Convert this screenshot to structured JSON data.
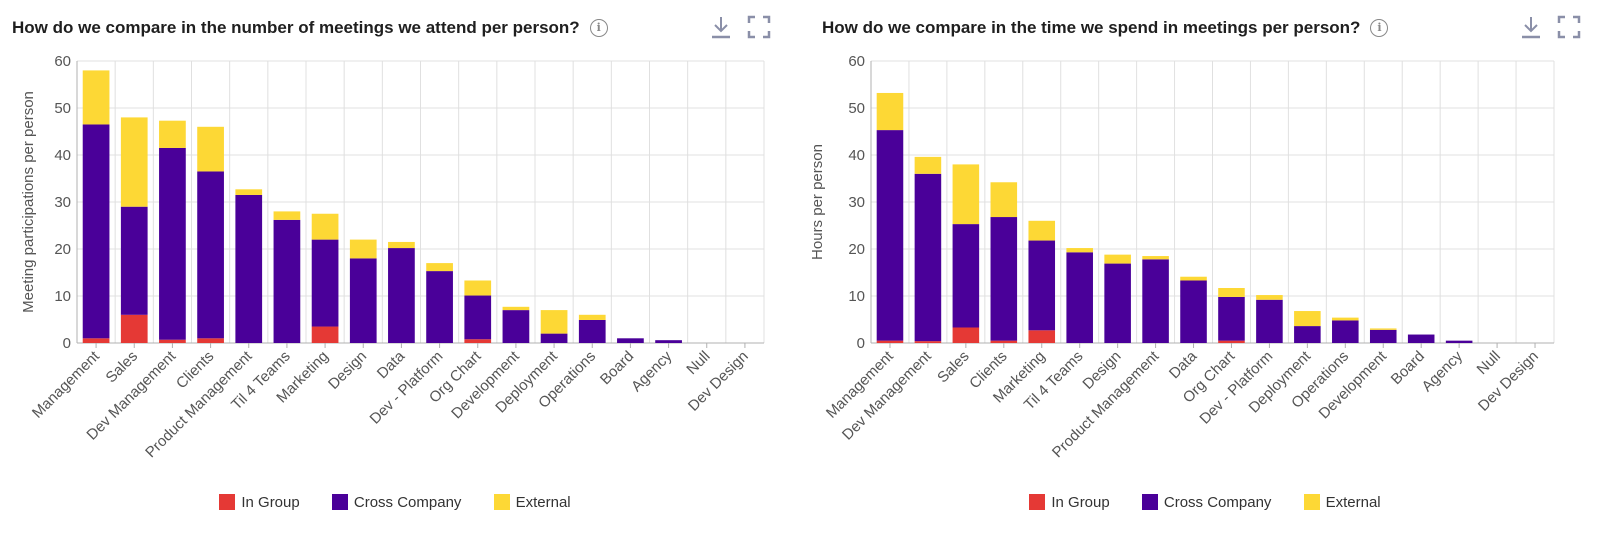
{
  "colors": {
    "in_group": "#e53935",
    "cross_company": "#4a0099",
    "external": "#fdd835",
    "grid": "#e0e0e0",
    "axis": "#b0b0b0"
  },
  "icons": {
    "info": "info-icon",
    "download": "download-icon",
    "expand": "expand-icon"
  },
  "legend": [
    "In Group",
    "Cross Company",
    "External"
  ],
  "chart_data": [
    {
      "type": "bar",
      "stacked": true,
      "title": "How do we compare in the number of meetings we attend per person?",
      "ylabel": "Meeting participations per person",
      "ylim": [
        0,
        60
      ],
      "yticks": [
        "0",
        "10",
        "20",
        "30",
        "40",
        "50",
        "60"
      ],
      "categories": [
        "Management",
        "Sales",
        "Dev Management",
        "Clients",
        "Product Management",
        "Til 4 Teams",
        "Marketing",
        "Design",
        "Data",
        "Dev - Platform",
        "Org Chart",
        "Development",
        "Deployment",
        "Operations",
        "Board",
        "Agency",
        "Null",
        "Dev Design"
      ],
      "series": [
        {
          "name": "In Group",
          "values": [
            1,
            6,
            0.7,
            1,
            0,
            0,
            3.5,
            0,
            0,
            0,
            0.8,
            0,
            0,
            0,
            0,
            0,
            0,
            0
          ]
        },
        {
          "name": "Cross Company",
          "values": [
            45.5,
            23,
            40.8,
            35.5,
            31.5,
            26.2,
            18.5,
            18,
            20.2,
            15.3,
            9.3,
            7,
            2,
            4.9,
            1,
            0.6,
            0,
            0
          ]
        },
        {
          "name": "External",
          "values": [
            11.5,
            19,
            5.8,
            9.5,
            1.2,
            1.8,
            5.5,
            4,
            1.3,
            1.7,
            3.2,
            0.7,
            5,
            1.1,
            0,
            0,
            0,
            0
          ]
        }
      ],
      "grid": true,
      "legend_position": "bottom"
    },
    {
      "type": "bar",
      "stacked": true,
      "title": "How do we compare in the time we spend in meetings per person?",
      "ylabel": "Hours per person",
      "ylim": [
        0,
        60
      ],
      "yticks": [
        "0",
        "10",
        "20",
        "30",
        "40",
        "50",
        "60"
      ],
      "categories": [
        "Management",
        "Dev Management",
        "Sales",
        "Clients",
        "Marketing",
        "Til 4 Teams",
        "Design",
        "Product Management",
        "Data",
        "Org Chart",
        "Dev - Platform",
        "Deployment",
        "Operations",
        "Development",
        "Board",
        "Agency",
        "Null",
        "Dev Design"
      ],
      "series": [
        {
          "name": "In Group",
          "values": [
            0.5,
            0.4,
            3.3,
            0.5,
            2.7,
            0,
            0,
            0,
            0,
            0.5,
            0,
            0,
            0,
            0,
            0,
            0,
            0,
            0
          ]
        },
        {
          "name": "Cross Company",
          "values": [
            44.8,
            35.6,
            22,
            26.3,
            19.1,
            19.3,
            16.9,
            17.8,
            13.3,
            9.3,
            9.2,
            3.6,
            4.8,
            2.8,
            1.8,
            0.5,
            0,
            0
          ]
        },
        {
          "name": "External",
          "values": [
            7.9,
            3.6,
            12.7,
            7.4,
            4.2,
            0.9,
            1.9,
            0.7,
            0.8,
            1.9,
            1,
            3.2,
            0.6,
            0.3,
            0,
            0,
            0,
            0
          ]
        }
      ],
      "grid": true,
      "legend_position": "bottom"
    }
  ]
}
